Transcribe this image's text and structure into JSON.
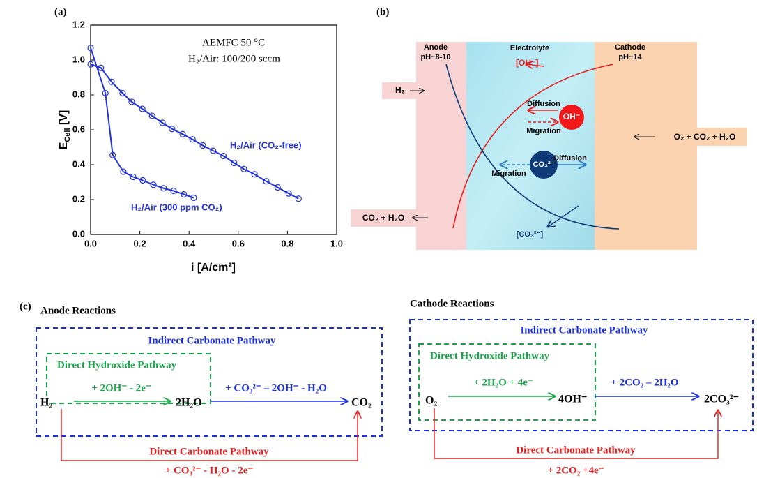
{
  "chart_data": {
    "type": "line",
    "panel_label": "(a)",
    "annotations": [
      "AEMFC 50 °C",
      "H₂/Air: 100/200 sccm"
    ],
    "xlabel": "i [A/cm²]",
    "ylabel": [
      "E",
      "Cell",
      " [V]"
    ],
    "xlim": [
      0,
      1
    ],
    "ylim": [
      0,
      1.2
    ],
    "xticks": [
      {
        "value": 0,
        "label": "0.0"
      },
      0.2,
      0.4,
      0.6,
      0.8,
      {
        "value": 1,
        "label": "1.0"
      }
    ],
    "yticks": [
      {
        "value": 0,
        "label": "0.0"
      },
      0.2,
      0.4,
      0.6,
      0.8,
      {
        "value": 1,
        "label": "1.0"
      },
      1.2
    ],
    "series": [
      {
        "name": "H₂/Air (CO₂-free)",
        "color": "#2433d6",
        "x": [
          0,
          0.042,
          0.085,
          0.13,
          0.167,
          0.21,
          0.25,
          0.292,
          0.331,
          0.374,
          0.414,
          0.456,
          0.498,
          0.54,
          0.583,
          0.623,
          0.666,
          0.714,
          0.76,
          0.805,
          0.845
        ],
        "values": [
          0.975,
          0.955,
          0.875,
          0.81,
          0.76,
          0.72,
          0.68,
          0.64,
          0.605,
          0.575,
          0.545,
          0.51,
          0.48,
          0.45,
          0.41,
          0.375,
          0.345,
          0.305,
          0.27,
          0.235,
          0.205
        ]
      },
      {
        "name": "H₂/Air (300 ppm CO₂)",
        "color": "#2433d6",
        "x": [
          0,
          0.06,
          0.09,
          0.133,
          0.173,
          0.212,
          0.255,
          0.297,
          0.337,
          0.379,
          0.419
        ],
        "values": [
          1.07,
          0.81,
          0.455,
          0.36,
          0.33,
          0.31,
          0.285,
          0.265,
          0.25,
          0.23,
          0.21
        ]
      }
    ]
  },
  "diagram": {
    "panel_label": "(b)",
    "anode": [
      "Anode",
      "pH~8-10"
    ],
    "electrolyte": "Electrolyte",
    "cathode": [
      "Cathode",
      "pH~14"
    ],
    "oh_product": "[OH⁻]",
    "h2_in": "H₂",
    "oh_ion": "OH⁻",
    "oh_diffusion": "Diffusion",
    "oh_migration": "Migration",
    "co3_ion": "CO₃²⁻",
    "co3_diffusion": "Diffusion",
    "co3_migration": "Migration",
    "cathode_feed": "O₂ + CO₂ + H₂O",
    "anode_exhaust": "CO₂ + H₂O",
    "co3_product": "[CO₃²⁻]"
  },
  "reactions": {
    "panel_label": "(c)",
    "anode": {
      "title": "Anode Reactions",
      "indirect": "Indirect Carbonate Pathway",
      "direct_hydroxide": "Direct Hydroxide Pathway",
      "reactant": "H₂",
      "step1": "+ 2OH⁻ - 2e⁻",
      "intermediate": "2H₂O",
      "step2": "+ CO₃²⁻ – 2OH⁻ - H₂O",
      "product": "CO₂",
      "direct_carbonate": "Direct Carbonate Pathway",
      "step3": "+ CO₃²⁻ - H₂O - 2e⁻"
    },
    "cathode": {
      "title": "Cathode Reactions",
      "indirect": "Indirect Carbonate Pathway",
      "direct_hydroxide": "Direct Hydroxide Pathway",
      "reactant": "O₂",
      "step1": "+ 2H₂O + 4e⁻",
      "intermediate": "4OH⁻",
      "step2": "+ 2CO₂ – 2H₂O",
      "product": "2CO₃²⁻",
      "direct_carbonate": "Direct Carbonate Pathway",
      "step3": "+ 2CO₂ +4e⁻"
    }
  }
}
